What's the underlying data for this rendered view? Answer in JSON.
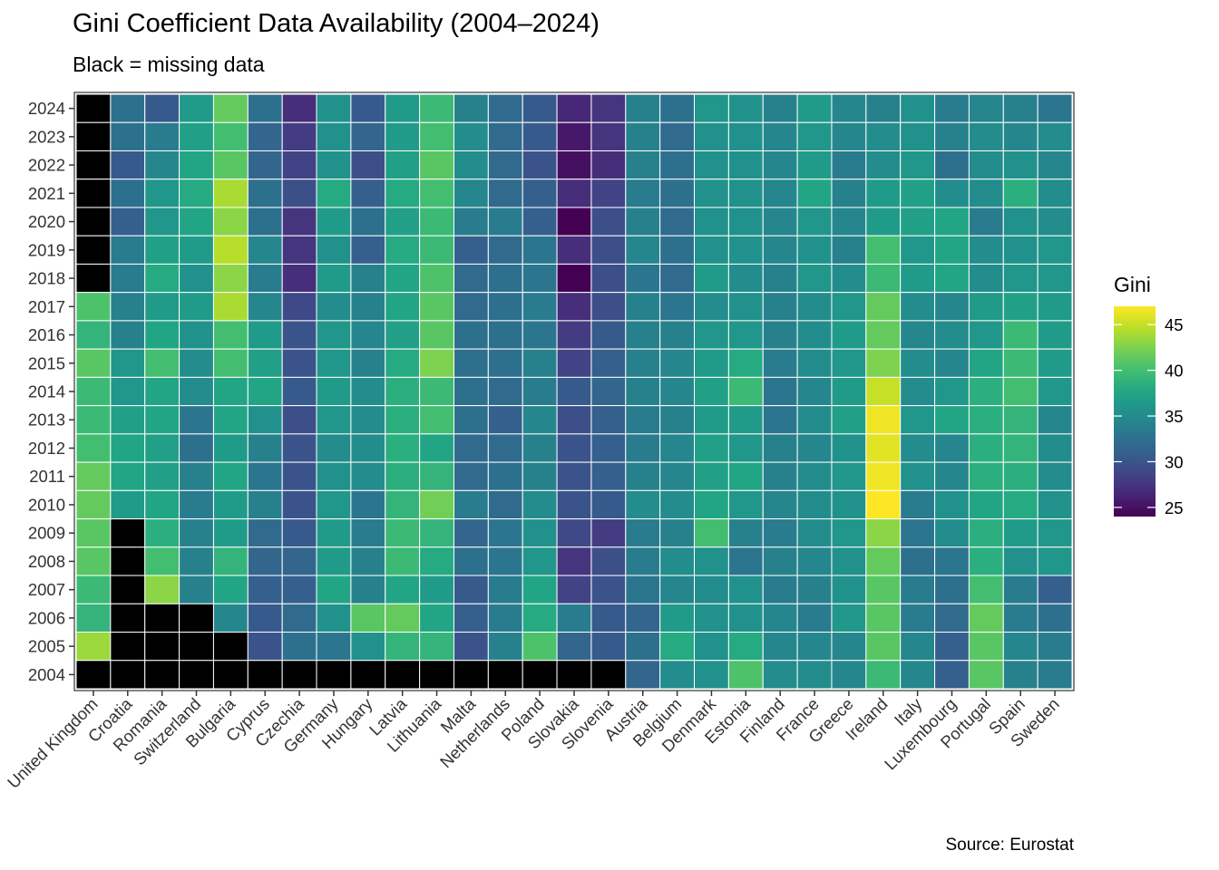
{
  "chart_data": {
    "type": "heatmap",
    "title": "Gini Coefficient Data Availability (2004–2024)",
    "subtitle": "Black = missing data",
    "caption": "Source: Eurostat",
    "xlabel": "",
    "ylabel": "",
    "legend": {
      "title": "Gini",
      "position": "right",
      "breaks": [
        25,
        30,
        35,
        40,
        45
      ],
      "range": [
        24,
        47
      ],
      "palette": "viridis",
      "missing_color": "#000000"
    },
    "x": [
      "United Kingdom",
      "Croatia",
      "Romania",
      "Switzerland",
      "Bulgaria",
      "Cyprus",
      "Czechia",
      "Germany",
      "Hungary",
      "Latvia",
      "Lithuania",
      "Malta",
      "Netherlands",
      "Poland",
      "Slovakia",
      "Slovenia",
      "Austria",
      "Belgium",
      "Denmark",
      "Estonia",
      "Finland",
      "France",
      "Greece",
      "Ireland",
      "Italy",
      "Luxembourg",
      "Portugal",
      "Spain",
      "Sweden"
    ],
    "y": [
      2024,
      2023,
      2022,
      2021,
      2020,
      2019,
      2018,
      2017,
      2016,
      2015,
      2014,
      2013,
      2012,
      2011,
      2010,
      2009,
      2008,
      2007,
      2006,
      2005,
      2004
    ],
    "values": [
      [
        null,
        32.5,
        30.5,
        36.5,
        41.5,
        32.5,
        27.0,
        35.5,
        30.5,
        36.5,
        39.5,
        34.0,
        32.0,
        30.5,
        26.5,
        27.5,
        34.0,
        32.5,
        36.0,
        35.5,
        34.0,
        36.5,
        34.5,
        34.0,
        35.5,
        33.5,
        34.5,
        34.0,
        33.0
      ],
      [
        null,
        32.5,
        33.5,
        37.0,
        40.0,
        31.5,
        28.0,
        35.5,
        31.5,
        36.5,
        40.0,
        35.0,
        32.0,
        30.5,
        25.5,
        27.5,
        34.0,
        32.0,
        35.5,
        35.5,
        34.5,
        36.0,
        34.5,
        35.0,
        35.5,
        34.0,
        35.0,
        34.5,
        35.0
      ],
      [
        null,
        30.5,
        34.5,
        37.5,
        41.0,
        31.5,
        28.5,
        35.5,
        29.5,
        37.0,
        41.0,
        35.0,
        32.0,
        30.0,
        25.0,
        27.0,
        34.0,
        32.5,
        35.5,
        35.5,
        34.5,
        36.5,
        33.5,
        35.0,
        36.0,
        32.5,
        35.0,
        35.5,
        34.5
      ],
      [
        null,
        32.5,
        36.0,
        38.0,
        44.0,
        32.5,
        29.5,
        38.0,
        31.0,
        38.0,
        40.0,
        34.5,
        32.0,
        31.0,
        27.0,
        28.5,
        33.5,
        32.5,
        35.5,
        35.5,
        34.5,
        37.5,
        34.0,
        36.5,
        37.0,
        35.0,
        35.0,
        38.5,
        35.0
      ],
      [
        null,
        31.0,
        36.0,
        37.5,
        43.0,
        32.5,
        27.5,
        36.5,
        32.5,
        37.0,
        39.5,
        33.5,
        33.5,
        31.0,
        24.0,
        29.5,
        34.0,
        32.0,
        35.5,
        35.5,
        34.5,
        36.0,
        34.5,
        36.5,
        37.0,
        37.5,
        33.5,
        35.5,
        35.0
      ],
      [
        null,
        33.5,
        37.0,
        36.5,
        44.5,
        34.5,
        27.5,
        35.5,
        31.0,
        38.0,
        39.5,
        31.0,
        32.0,
        33.0,
        27.0,
        29.5,
        34.5,
        32.5,
        35.5,
        35.5,
        34.5,
        35.5,
        34.0,
        40.0,
        36.0,
        37.5,
        35.0,
        35.5,
        36.0
      ],
      [
        null,
        33.5,
        38.0,
        35.5,
        43.0,
        33.5,
        27.0,
        36.5,
        34.0,
        37.5,
        40.5,
        32.0,
        32.5,
        33.0,
        24.0,
        29.5,
        33.0,
        32.0,
        36.5,
        35.0,
        34.0,
        36.0,
        35.0,
        39.5,
        36.5,
        37.5,
        35.0,
        36.0,
        36.0
      ],
      [
        40.5,
        34.0,
        36.5,
        36.5,
        44.0,
        34.5,
        29.0,
        35.0,
        34.0,
        37.5,
        41.0,
        32.0,
        32.5,
        33.5,
        27.0,
        29.5,
        34.0,
        33.0,
        35.0,
        35.5,
        34.0,
        35.0,
        36.0,
        41.5,
        35.0,
        34.5,
        36.5,
        37.0,
        36.5
      ],
      [
        39.0,
        34.0,
        37.5,
        35.5,
        40.0,
        36.5,
        30.0,
        36.0,
        34.5,
        37.0,
        41.0,
        32.5,
        32.5,
        33.0,
        28.0,
        30.5,
        34.0,
        34.0,
        36.0,
        36.0,
        34.0,
        35.0,
        36.5,
        41.5,
        34.5,
        35.0,
        36.0,
        39.5,
        36.5
      ],
      [
        41.0,
        36.0,
        40.0,
        35.0,
        40.0,
        37.0,
        30.0,
        36.0,
        34.0,
        38.0,
        42.5,
        32.5,
        32.5,
        34.0,
        28.5,
        31.0,
        34.0,
        34.5,
        36.5,
        38.0,
        33.5,
        35.0,
        36.0,
        42.5,
        35.0,
        34.5,
        37.5,
        39.5,
        36.5
      ],
      [
        39.5,
        36.0,
        37.5,
        35.0,
        37.5,
        37.5,
        30.5,
        36.5,
        35.0,
        38.5,
        39.5,
        32.5,
        32.0,
        33.5,
        30.5,
        31.5,
        34.0,
        34.5,
        37.0,
        39.5,
        33.0,
        34.5,
        36.5,
        45.0,
        35.0,
        36.0,
        38.5,
        40.0,
        36.0
      ],
      [
        39.5,
        37.0,
        37.5,
        33.0,
        37.5,
        35.5,
        29.5,
        36.0,
        35.0,
        38.5,
        40.0,
        32.5,
        31.0,
        34.5,
        29.5,
        31.0,
        33.5,
        34.0,
        36.5,
        36.5,
        33.0,
        35.0,
        37.0,
        46.5,
        36.0,
        37.5,
        38.5,
        39.0,
        34.5
      ],
      [
        40.0,
        37.5,
        37.0,
        32.5,
        36.5,
        34.0,
        30.0,
        35.0,
        35.0,
        38.5,
        37.5,
        32.0,
        32.0,
        34.0,
        30.0,
        31.0,
        33.5,
        34.5,
        37.0,
        36.0,
        34.0,
        34.5,
        35.5,
        46.0,
        35.0,
        34.5,
        38.5,
        39.0,
        35.0
      ],
      [
        41.5,
        37.5,
        37.0,
        34.0,
        37.5,
        33.0,
        30.0,
        35.5,
        35.0,
        38.5,
        39.0,
        32.0,
        32.5,
        34.0,
        30.0,
        31.0,
        34.0,
        34.5,
        37.0,
        37.5,
        34.0,
        35.0,
        36.0,
        46.5,
        35.5,
        34.5,
        38.5,
        38.5,
        35.0
      ],
      [
        41.5,
        36.5,
        37.5,
        33.5,
        36.5,
        34.0,
        30.0,
        36.0,
        33.0,
        39.0,
        42.0,
        33.5,
        32.0,
        35.0,
        30.0,
        30.5,
        35.0,
        35.0,
        37.5,
        36.0,
        34.5,
        35.0,
        35.5,
        47.0,
        33.5,
        35.5,
        37.5,
        38.0,
        35.5
      ],
      [
        41.0,
        null,
        38.5,
        34.0,
        36.5,
        32.0,
        30.5,
        36.5,
        33.5,
        39.5,
        39.0,
        31.5,
        33.0,
        35.5,
        29.0,
        28.0,
        33.5,
        34.0,
        40.0,
        34.0,
        33.5,
        35.0,
        36.0,
        43.0,
        33.0,
        35.0,
        38.5,
        36.5,
        36.0
      ],
      [
        41.0,
        null,
        40.0,
        34.0,
        39.0,
        31.5,
        31.5,
        36.5,
        34.0,
        39.5,
        38.0,
        32.5,
        33.0,
        36.0,
        27.5,
        29.5,
        33.5,
        35.0,
        35.5,
        33.0,
        34.0,
        34.5,
        35.5,
        41.5,
        32.5,
        33.0,
        38.5,
        35.5,
        36.0
      ],
      [
        39.5,
        null,
        43.0,
        34.0,
        37.5,
        31.0,
        31.0,
        37.5,
        34.0,
        37.5,
        36.5,
        30.5,
        33.5,
        37.5,
        28.5,
        30.0,
        33.0,
        34.5,
        35.0,
        35.5,
        33.5,
        34.0,
        35.5,
        41.0,
        33.5,
        32.5,
        40.0,
        33.5,
        31.0
      ],
      [
        39.0,
        null,
        null,
        null,
        34.5,
        30.5,
        32.0,
        35.5,
        41.0,
        41.5,
        37.5,
        31.0,
        33.5,
        38.0,
        33.5,
        30.5,
        31.5,
        36.5,
        35.5,
        35.5,
        34.5,
        33.5,
        36.0,
        41.0,
        33.5,
        32.0,
        41.5,
        33.5,
        32.5
      ],
      [
        43.5,
        null,
        null,
        null,
        null,
        30.0,
        32.5,
        33.0,
        35.5,
        39.0,
        39.0,
        30.0,
        34.0,
        40.5,
        31.5,
        30.5,
        32.5,
        38.0,
        35.5,
        38.0,
        34.5,
        34.5,
        34.5,
        41.0,
        34.5,
        31.0,
        41.0,
        34.5,
        33.5
      ],
      [
        null,
        null,
        null,
        null,
        null,
        null,
        null,
        null,
        null,
        null,
        null,
        null,
        null,
        null,
        null,
        null,
        31.5,
        35.0,
        35.5,
        40.5,
        35.0,
        35.0,
        34.5,
        39.5,
        34.5,
        31.0,
        41.0,
        34.0,
        33.5
      ]
    ],
    "grid": true
  }
}
